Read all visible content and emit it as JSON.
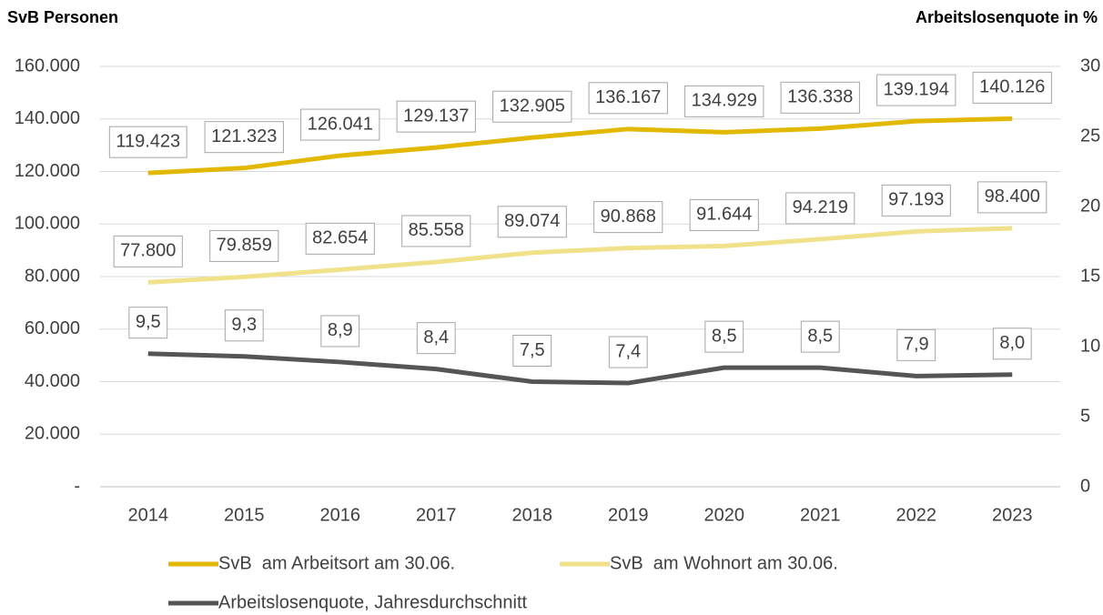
{
  "chart_data": {
    "type": "line",
    "y_label": "SvB Personen",
    "y2_label": "Arbeitslosenquote in %",
    "categories": [
      "2014",
      "2015",
      "2016",
      "2017",
      "2018",
      "2019",
      "2020",
      "2021",
      "2022",
      "2023"
    ],
    "series": [
      {
        "name": "SvB  am Arbeitsort am 30.06.",
        "color": "#e2b800",
        "values": [
          119423,
          121323,
          126041,
          129137,
          132905,
          136167,
          134929,
          136338,
          139194,
          140126
        ],
        "value_labels": [
          "119.423",
          "121.323",
          "126.041",
          "129.137",
          "132.905",
          "136.167",
          "134.929",
          "136.338",
          "139.194",
          "140.126"
        ]
      },
      {
        "name": "SvB  am Wohnort am 30.06.",
        "color": "#f0e18a",
        "values": [
          77800,
          79859,
          82654,
          85558,
          89074,
          90868,
          91644,
          94219,
          97193,
          98400
        ],
        "value_labels": [
          "77.800",
          "79.859",
          "82.654",
          "85.558",
          "89.074",
          "90.868",
          "91.644",
          "94.219",
          "97.193",
          "98.400"
        ]
      },
      {
        "name": "Arbeitslosenquote, Jahresdurchschnitt",
        "color": "#555555",
        "axis": "y2",
        "values": [
          9.5,
          9.3,
          8.9,
          8.4,
          7.5,
          7.4,
          8.5,
          8.5,
          7.9,
          8.0
        ],
        "value_labels": [
          "9,5",
          "9,3",
          "8,9",
          "8,4",
          "7,5",
          "7,4",
          "8,5",
          "8,5",
          "7,9",
          "8,0"
        ]
      }
    ],
    "ylim": [
      0,
      160000
    ],
    "yticks": [
      {
        "value": 0,
        "label": "-"
      },
      {
        "value": 20000,
        "label": "20.000"
      },
      {
        "value": 40000,
        "label": "40.000"
      },
      {
        "value": 60000,
        "label": "60.000"
      },
      {
        "value": 80000,
        "label": "80.000"
      },
      {
        "value": 100000,
        "label": "100.000"
      },
      {
        "value": 120000,
        "label": "120.000"
      },
      {
        "value": 140000,
        "label": "140.000"
      },
      {
        "value": 160000,
        "label": "160.000"
      }
    ],
    "y2lim": [
      0,
      30
    ],
    "y2ticks": [
      0,
      5,
      10,
      15,
      20,
      25,
      30
    ],
    "grid": true,
    "legend": "bottom"
  }
}
